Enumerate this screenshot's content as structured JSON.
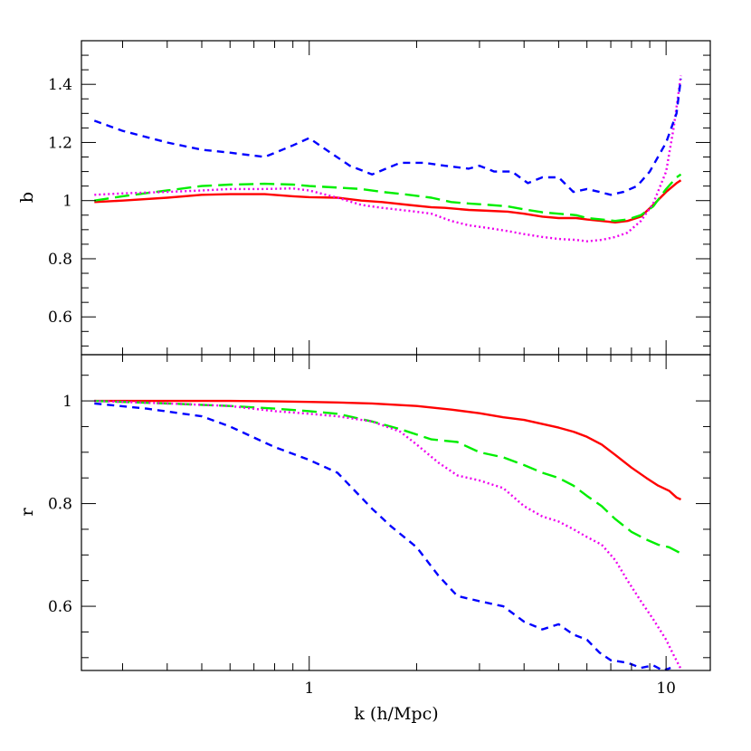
{
  "chart_data": [
    {
      "type": "line",
      "panel": "top",
      "xlabel": "",
      "ylabel": "b",
      "xscale": "log",
      "xlim": [
        0.23,
        13.3
      ],
      "ylim": [
        0.47,
        1.55
      ],
      "yticks": [
        0.6,
        0.8,
        1.0,
        1.2,
        1.4
      ],
      "ytick_labels": [
        "0.6",
        "0.8",
        "1",
        "1.2",
        "1.4"
      ],
      "grid": false,
      "legend": "none",
      "series": [
        {
          "color": "#ff0000",
          "style": "solid",
          "x": [
            0.25,
            0.3,
            0.4,
            0.5,
            0.6,
            0.75,
            0.9,
            1.0,
            1.2,
            1.4,
            1.6,
            1.9,
            2.2,
            2.4,
            2.8,
            3.2,
            3.6,
            4.0,
            4.5,
            5.0,
            5.6,
            6.0,
            6.6,
            7.2,
            7.8,
            8.5,
            9.2,
            10.0,
            10.7,
            11.0
          ],
          "y": [
            0.995,
            1.0,
            1.01,
            1.02,
            1.022,
            1.022,
            1.015,
            1.012,
            1.01,
            1.0,
            0.995,
            0.985,
            0.977,
            0.975,
            0.968,
            0.965,
            0.962,
            0.955,
            0.945,
            0.94,
            0.94,
            0.935,
            0.93,
            0.925,
            0.93,
            0.945,
            0.985,
            1.03,
            1.06,
            1.07
          ]
        },
        {
          "color": "#00ee00",
          "style": "long-dash",
          "x": [
            0.25,
            0.3,
            0.4,
            0.5,
            0.6,
            0.75,
            0.9,
            1.0,
            1.2,
            1.4,
            1.6,
            1.9,
            2.2,
            2.5,
            2.8,
            3.2,
            3.6,
            4.0,
            4.5,
            5.0,
            5.6,
            6.0,
            6.6,
            7.2,
            7.8,
            8.5,
            9.2,
            10.0,
            10.7,
            11.0
          ],
          "y": [
            1.0,
            1.015,
            1.035,
            1.05,
            1.055,
            1.058,
            1.055,
            1.05,
            1.045,
            1.04,
            1.03,
            1.02,
            1.01,
            0.995,
            0.99,
            0.985,
            0.98,
            0.97,
            0.96,
            0.955,
            0.95,
            0.94,
            0.935,
            0.93,
            0.935,
            0.95,
            0.98,
            1.04,
            1.08,
            1.09
          ]
        },
        {
          "color": "#ee00ee",
          "style": "dotted",
          "x": [
            0.25,
            0.3,
            0.4,
            0.5,
            0.6,
            0.75,
            0.9,
            1.0,
            1.2,
            1.4,
            1.6,
            1.9,
            2.2,
            2.5,
            2.8,
            3.2,
            3.6,
            4.0,
            4.5,
            5.0,
            5.6,
            6.0,
            6.6,
            7.2,
            7.8,
            8.5,
            9.2,
            10.0,
            10.5,
            11.0
          ],
          "y": [
            1.02,
            1.025,
            1.03,
            1.035,
            1.04,
            1.04,
            1.042,
            1.035,
            1.01,
            0.985,
            0.975,
            0.965,
            0.955,
            0.93,
            0.915,
            0.905,
            0.895,
            0.885,
            0.875,
            0.868,
            0.865,
            0.86,
            0.865,
            0.875,
            0.89,
            0.93,
            0.99,
            1.1,
            1.25,
            1.43
          ]
        },
        {
          "color": "#0000ff",
          "style": "short-dash",
          "x": [
            0.25,
            0.3,
            0.4,
            0.5,
            0.6,
            0.75,
            0.9,
            1.0,
            1.1,
            1.3,
            1.5,
            1.8,
            2.1,
            2.4,
            2.8,
            3.0,
            3.3,
            3.7,
            4.1,
            4.5,
            5.0,
            5.5,
            6.0,
            6.5,
            7.0,
            7.6,
            8.3,
            9.0,
            10.0,
            10.7,
            11.0
          ],
          "y": [
            1.275,
            1.24,
            1.2,
            1.175,
            1.165,
            1.15,
            1.19,
            1.215,
            1.18,
            1.12,
            1.09,
            1.13,
            1.13,
            1.12,
            1.11,
            1.12,
            1.1,
            1.1,
            1.06,
            1.08,
            1.08,
            1.03,
            1.04,
            1.03,
            1.02,
            1.03,
            1.05,
            1.1,
            1.2,
            1.3,
            1.42
          ]
        }
      ]
    },
    {
      "type": "line",
      "panel": "bottom",
      "xlabel": "k (h/Mpc)",
      "ylabel": "r",
      "xscale": "log",
      "xlim": [
        0.23,
        13.3
      ],
      "ylim": [
        0.475,
        1.09
      ],
      "xticks": [
        1,
        10
      ],
      "xtick_labels": [
        "1",
        "10"
      ],
      "yticks": [
        0.6,
        0.8,
        1.0
      ],
      "ytick_labels": [
        "0.6",
        "0.8",
        "1"
      ],
      "grid": false,
      "legend": "none",
      "series": [
        {
          "color": "#ff0000",
          "style": "solid",
          "x": [
            0.25,
            0.4,
            0.6,
            0.8,
            1.0,
            1.2,
            1.5,
            2.0,
            2.5,
            3.0,
            3.5,
            4.0,
            4.5,
            5.0,
            5.5,
            6.0,
            6.6,
            7.2,
            8.0,
            8.8,
            9.5,
            10.2,
            10.7,
            11.0
          ],
          "y": [
            1.0,
            1.0,
            1.0,
            0.999,
            0.998,
            0.997,
            0.995,
            0.99,
            0.983,
            0.976,
            0.968,
            0.963,
            0.955,
            0.948,
            0.94,
            0.93,
            0.915,
            0.895,
            0.87,
            0.85,
            0.835,
            0.825,
            0.812,
            0.808
          ]
        },
        {
          "color": "#00ee00",
          "style": "long-dash",
          "x": [
            0.25,
            0.4,
            0.6,
            0.8,
            1.0,
            1.2,
            1.5,
            1.8,
            2.2,
            2.6,
            3.0,
            3.5,
            4.0,
            4.5,
            5.0,
            5.5,
            6.0,
            6.6,
            7.2,
            8.0,
            8.8,
            9.5,
            10.2,
            11.0
          ],
          "y": [
            1.0,
            0.995,
            0.99,
            0.985,
            0.98,
            0.975,
            0.96,
            0.945,
            0.925,
            0.92,
            0.9,
            0.89,
            0.875,
            0.86,
            0.85,
            0.835,
            0.815,
            0.795,
            0.77,
            0.745,
            0.73,
            0.72,
            0.715,
            0.703
          ]
        },
        {
          "color": "#ee00ee",
          "style": "dotted",
          "x": [
            0.25,
            0.4,
            0.6,
            0.8,
            1.0,
            1.2,
            1.5,
            1.8,
            2.0,
            2.3,
            2.6,
            3.0,
            3.5,
            4.0,
            4.5,
            5.0,
            5.5,
            6.0,
            6.6,
            7.2,
            7.8,
            8.5,
            9.2,
            10.0,
            10.5,
            11.0
          ],
          "y": [
            1.0,
            0.995,
            0.99,
            0.98,
            0.975,
            0.97,
            0.96,
            0.94,
            0.915,
            0.88,
            0.855,
            0.845,
            0.83,
            0.795,
            0.775,
            0.765,
            0.75,
            0.735,
            0.72,
            0.69,
            0.65,
            0.61,
            0.575,
            0.535,
            0.505,
            0.478
          ]
        },
        {
          "color": "#0000ff",
          "style": "short-dash",
          "x": [
            0.25,
            0.35,
            0.5,
            0.6,
            0.8,
            1.0,
            1.2,
            1.5,
            1.7,
            2.0,
            2.3,
            2.6,
            3.0,
            3.5,
            4.0,
            4.5,
            5.0,
            5.5,
            6.0,
            6.5,
            7.0,
            7.8,
            8.5,
            9.2,
            9.8,
            10.3
          ],
          "y": [
            0.995,
            0.985,
            0.97,
            0.95,
            0.91,
            0.885,
            0.86,
            0.79,
            0.755,
            0.715,
            0.66,
            0.62,
            0.61,
            0.6,
            0.57,
            0.555,
            0.565,
            0.545,
            0.535,
            0.51,
            0.495,
            0.49,
            0.48,
            0.485,
            0.475,
            0.48
          ]
        }
      ]
    }
  ]
}
